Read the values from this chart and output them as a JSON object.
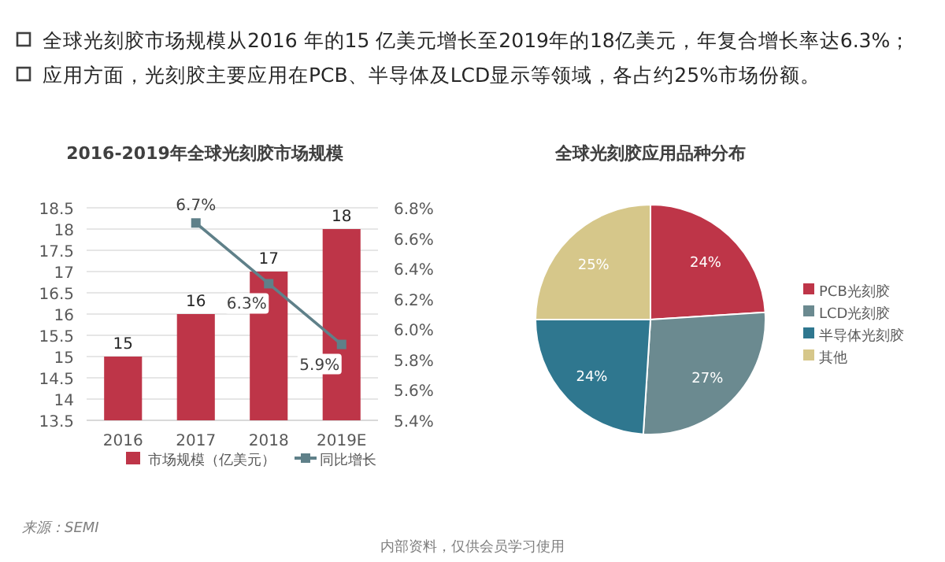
{
  "chart_data": [
    {
      "type": "bar",
      "title": "2016-2019年全球光刻胶市场规模",
      "annotations": [
        "全球光刻胶市场规模从2016 年的15 亿美元增长至2019年的18亿美元，年复合增长率达6.3%；",
        "应用方面，光刻胶主要应用在PCB、半导体及LCD显示等领域，各占约25%市场份额。",
        "来源：SEMI"
      ],
      "categories": [
        "2016",
        "2017",
        "2018",
        "2019E"
      ],
      "series": [
        {
          "name": "市场规模（亿美元）",
          "type": "bar",
          "color": "#be3548",
          "values": [
            15,
            16,
            17,
            18
          ]
        },
        {
          "name": "同比增长",
          "type": "line",
          "axis": "y2",
          "color": "#5f8089",
          "marker": "square",
          "values": [
            null,
            6.7,
            6.3,
            5.9
          ],
          "value_labels": [
            null,
            "6.7%",
            "6.3%",
            "5.9%"
          ]
        }
      ],
      "data_labels": true,
      "ylim": [
        13.5,
        18.5
      ],
      "yticks": [
        13.5,
        14,
        14.5,
        15,
        15.5,
        16,
        16.5,
        17,
        17.5,
        18,
        18.5
      ],
      "y2lim": [
        5.4,
        6.8
      ],
      "y2ticks": [
        {
          "value": 5.4,
          "label": "5.4%"
        },
        {
          "value": 5.6,
          "label": "5.6%"
        },
        {
          "value": 5.8,
          "label": "5.8%"
        },
        {
          "value": 6.0,
          "label": "6.0%"
        },
        {
          "value": 6.2,
          "label": "6.2%"
        },
        {
          "value": 6.4,
          "label": "6.4%"
        },
        {
          "value": 6.6,
          "label": "6.6%"
        },
        {
          "value": 6.8,
          "label": "6.8%"
        }
      ],
      "grid": "y",
      "legend": "bottom"
    },
    {
      "type": "pie",
      "title": "全球光刻胶应用品种分布",
      "annotations": [
        "内部资料，仅供会员学习使用"
      ],
      "categories": [
        "PCB光刻胶",
        "LCD光刻胶",
        "半导体光刻胶",
        "其他"
      ],
      "values": [
        24,
        27,
        24,
        25
      ],
      "value_labels": [
        "24%",
        "27%",
        "24%",
        "25%"
      ],
      "colors": [
        "#be3548",
        "#6b8a90",
        "#2f778f",
        "#d6c78a"
      ],
      "legend": "right"
    }
  ]
}
